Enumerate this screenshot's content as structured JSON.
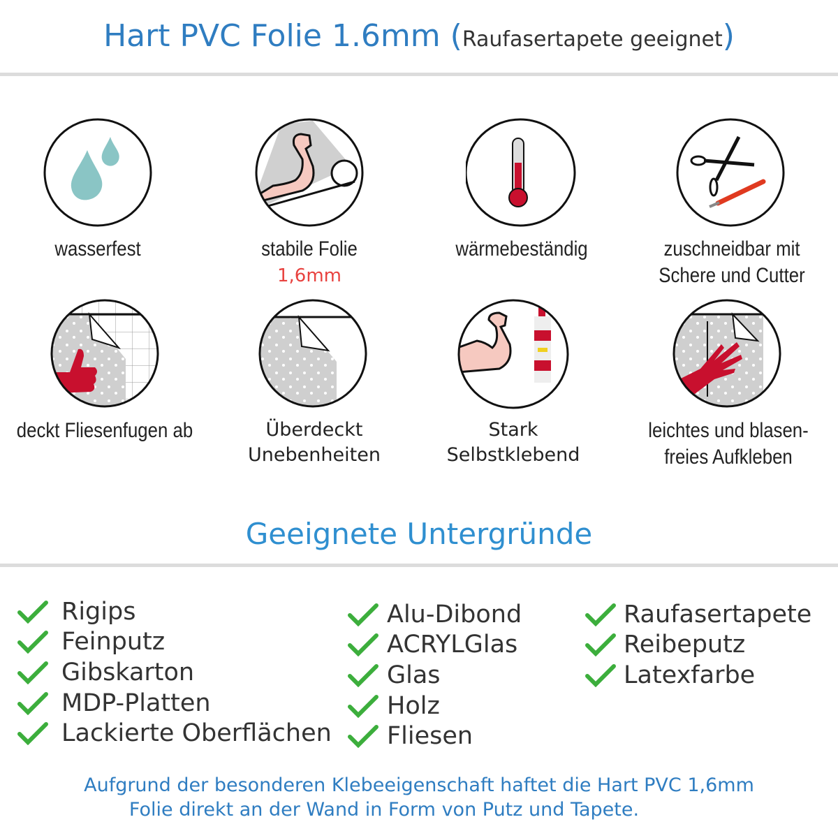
{
  "header": {
    "title": "Hart PVC Folie 1.6mm",
    "subtitle_open": "(",
    "subtitle": "Raufasertapete geeignet",
    "subtitle_close": ")"
  },
  "features": [
    {
      "icon": "water-drops-icon",
      "line1": "wasserfest"
    },
    {
      "icon": "strong-arm-roll-icon",
      "line1": "stabile Folie",
      "line2": "1,6mm"
    },
    {
      "icon": "thermometer-icon",
      "line1": "wärmebeständig"
    },
    {
      "icon": "scissors-cutter-icon",
      "line1": "zuschneidbar mit",
      "line2": "Schere und Cutter"
    },
    {
      "icon": "thumbs-up-tiles-icon",
      "line1": "deckt Fliesenfugen ab"
    },
    {
      "icon": "foil-corner-icon",
      "line1": "Überdeckt",
      "line2": "Unebenheiten"
    },
    {
      "icon": "strong-arm-glue-icon",
      "line1": "Stark",
      "line2": "Selbstklebend"
    },
    {
      "icon": "hand-smoothing-icon",
      "line1": "leichtes und blasen-",
      "line2": "freies Aufkleben"
    }
  ],
  "surfaces": {
    "title": "Geeignete Untergründe",
    "columns": [
      [
        "Rigips",
        "Feinputz",
        "Gibskarton",
        "MDP-Platten",
        "Lackierte Oberflächen"
      ],
      [
        "Alu-Dibond",
        "ACRYLGlas",
        "Glas",
        "Holz",
        "Fliesen"
      ],
      [
        "Raufasertapete",
        "Reibeputz",
        "Latexfarbe"
      ]
    ]
  },
  "footer": {
    "line1": "Aufgrund der besonderen Klebeeigenschaft haftet die Hart PVC 1,6mm",
    "line2": "Folie direkt an der Wand in Form von Putz und Tapete."
  },
  "colors": {
    "title_blue": "#2f7dc1",
    "check_green": "#3cae3c",
    "accent_red": "#e8423f",
    "drop_teal": "#8ac5c5",
    "glue_red": "#c8102e"
  }
}
